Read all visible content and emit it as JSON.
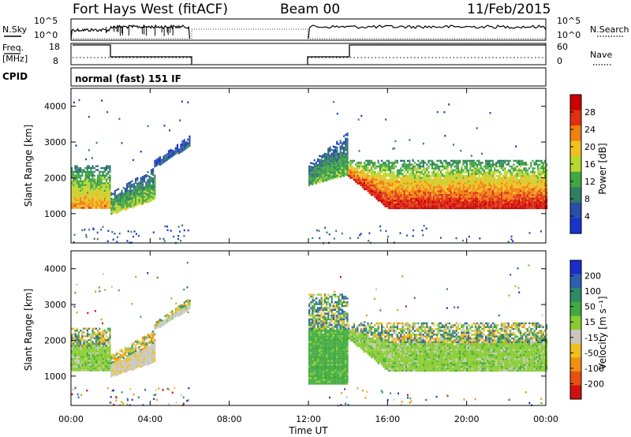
{
  "header": {
    "title": "Fort Hays West (fitACF)",
    "beam": "Beam 00",
    "date": "11/Feb/2015"
  },
  "strip_labels": {
    "nsky": "N.Sky",
    "nsearch": "N.Search",
    "freq_line1": "Freq.",
    "freq_line2": "[MHz]",
    "nave": "Nave",
    "cpid": "CPID",
    "mode": "normal (fast) 151 IF"
  },
  "strip_ticks": {
    "noise_left": [
      "10^5",
      "10^0"
    ],
    "noise_right": [
      "10^5",
      "10^0"
    ],
    "freq_left": [
      "18",
      "8"
    ],
    "nave_right": [
      "60",
      "0"
    ]
  },
  "axes": {
    "ylabel": "Slant Range [km]",
    "xlabel": "Time UT",
    "y_ticks": [
      "1000",
      "2000",
      "3000",
      "4000"
    ],
    "x_ticks": [
      "00:00",
      "04:00",
      "08:00",
      "12:00",
      "16:00",
      "20:00",
      "00:00"
    ]
  },
  "colorbars": {
    "power": {
      "label": "Power [dB]",
      "ticks": [
        "4",
        "8",
        "12",
        "16",
        "20",
        "24",
        "28"
      ],
      "colors": [
        "#1a33cc",
        "#2a4fa8",
        "#2f7f60",
        "#40a840",
        "#b8d830",
        "#f0c020",
        "#f08010",
        "#e03010",
        "#cc0000"
      ]
    },
    "velocity": {
      "label": "Velocity [m s⁻¹]",
      "ticks": [
        "200",
        "100",
        "50",
        "15",
        "-15",
        "-50",
        "-100",
        "-200"
      ],
      "colors": [
        "#1a2ecc",
        "#2f5fb0",
        "#2f8a6a",
        "#3faa3f",
        "#88cc30",
        "#c8c8c0",
        "#f0c020",
        "#f09010",
        "#e85010",
        "#d01010"
      ]
    }
  },
  "chart_data": [
    {
      "type": "heatmap",
      "title": "Power",
      "ylabel": "Slant Range [km]",
      "xlabel": "Time UT",
      "xlim_hours": [
        0,
        24
      ],
      "ylim_km": [
        180,
        4500
      ],
      "colorbar": "Power [dB]",
      "clim": [
        0,
        30
      ],
      "regions": [
        {
          "t0": 0.0,
          "t1": 2.0,
          "r_lo": 1150,
          "r_hi": 2350,
          "peak": 20
        },
        {
          "t0": 2.0,
          "t1": 4.2,
          "r_lo": 1000,
          "r_hi": 2300,
          "peak": 14
        },
        {
          "t0": 4.2,
          "t1": 6.0,
          "r_lo": 2300,
          "r_hi": 3200,
          "peak": 6
        },
        {
          "t0": 12.0,
          "t1": 14.0,
          "r_lo": 1800,
          "r_hi": 3300,
          "peak": 12
        },
        {
          "t0": 14.0,
          "t1": 24.0,
          "r_lo": 1100,
          "r_hi": 2500,
          "peak": 26
        }
      ]
    },
    {
      "type": "heatmap",
      "title": "Velocity",
      "ylabel": "Slant Range [km]",
      "xlabel": "Time UT",
      "xlim_hours": [
        0,
        24
      ],
      "ylim_km": [
        180,
        4500
      ],
      "colorbar": "Velocity [m s⁻¹]",
      "clim": [
        -250,
        250
      ],
      "regions": [
        {
          "t0": 0.0,
          "t1": 2.0,
          "r_lo": 1150,
          "r_hi": 2350,
          "velocity": 0
        },
        {
          "t0": 2.0,
          "t1": 4.2,
          "r_lo": 1000,
          "r_hi": 2300,
          "velocity": -40
        },
        {
          "t0": 4.2,
          "t1": 6.0,
          "r_lo": 2300,
          "r_hi": 3200,
          "velocity": -30
        },
        {
          "t0": 12.0,
          "t1": 14.0,
          "r_lo": 800,
          "r_hi": 3300,
          "velocity": 30
        },
        {
          "t0": 14.0,
          "t1": 24.0,
          "r_lo": 1100,
          "r_hi": 2500,
          "velocity": 0
        }
      ]
    }
  ]
}
